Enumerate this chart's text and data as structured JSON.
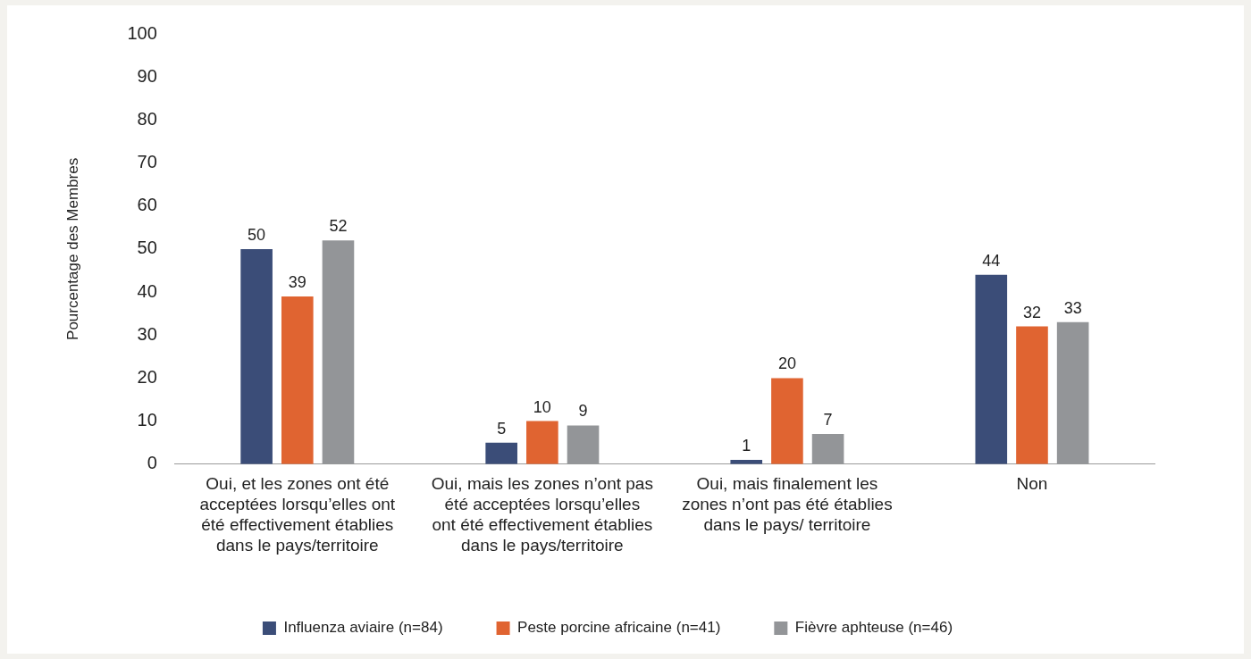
{
  "chart_data": {
    "type": "bar",
    "ylabel": "Pourcentage des Membres",
    "categories": [
      "Oui, et les zones ont été acceptées lorsqu’elles ont été effectivement établies dans le pays/territoire",
      "Oui, mais les zones n’ont pas été acceptées lorsqu’elles ont été effectivement établies dans le pays/territoire",
      "Oui, mais finalement les zones n’ont pas été établies dans le pays/ territoire",
      "Non"
    ],
    "series": [
      {
        "name": "Influenza aviaire (n=84)",
        "color": "#3b4d78",
        "values": [
          50,
          5,
          1,
          44
        ]
      },
      {
        "name": "Peste porcine africaine (n=41)",
        "color": "#e06431",
        "values": [
          39,
          10,
          20,
          32
        ]
      },
      {
        "name": "Fièvre aphteuse (n=46)",
        "color": "#939598",
        "values": [
          52,
          9,
          7,
          33
        ]
      }
    ],
    "ylim": [
      0,
      100
    ],
    "yticks": [
      0,
      10,
      20,
      30,
      40,
      50,
      60,
      70,
      80,
      90,
      100
    ],
    "grid": false,
    "legend": "bottom",
    "data_labels": true
  }
}
